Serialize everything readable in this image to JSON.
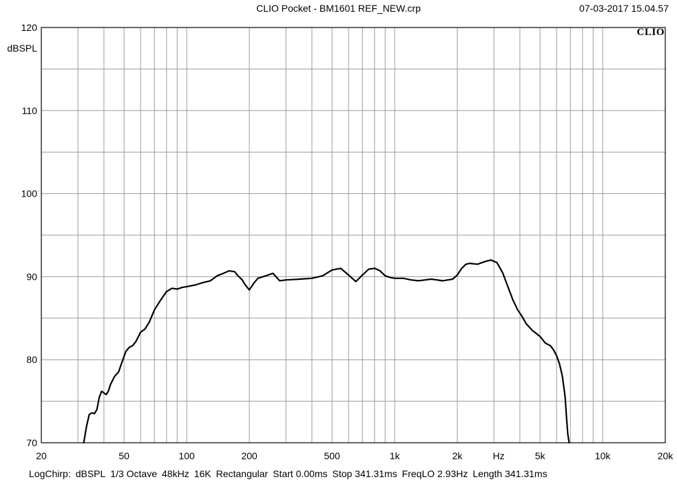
{
  "header": {
    "title": "CLIO Pocket - BM1601 REF_NEW.crp",
    "datetime": "07-03-2017 15.04.57",
    "logo": "CLIO"
  },
  "footer": {
    "items": [
      "LogChirp:",
      "dBSPL",
      "1/3 Octave",
      "48kHz",
      "16K",
      "Rectangular",
      "Start 0.00ms",
      "Stop 341.31ms",
      "FreqLO 2.93Hz",
      "Length 341.31ms"
    ]
  },
  "chart_data": {
    "type": "line",
    "ylabel": "dBSPL",
    "xunit": "Hz",
    "xscale": "log",
    "xlim": [
      20,
      20000
    ],
    "ylim": [
      70,
      120
    ],
    "grid": true,
    "x_tick_labels": [
      {
        "value": 20,
        "label": "20"
      },
      {
        "value": 50,
        "label": "50"
      },
      {
        "value": 100,
        "label": "100"
      },
      {
        "value": 200,
        "label": "200"
      },
      {
        "value": 500,
        "label": "500"
      },
      {
        "value": 1000,
        "label": "1k"
      },
      {
        "value": 2000,
        "label": "2k"
      },
      {
        "value": 5000,
        "label": "5k"
      },
      {
        "value": 10000,
        "label": "10k"
      },
      {
        "value": 20000,
        "label": "20k"
      }
    ],
    "y_tick_labels": [
      {
        "value": 70,
        "label": "70"
      },
      {
        "value": 80,
        "label": "80"
      },
      {
        "value": 90,
        "label": "90"
      },
      {
        "value": 100,
        "label": "100"
      },
      {
        "value": 110,
        "label": "110"
      },
      {
        "value": 120,
        "label": "120"
      }
    ],
    "series": [
      {
        "color": "#000000",
        "x": [
          32,
          33,
          34,
          35,
          36,
          37,
          38,
          39,
          40,
          41,
          42,
          43,
          45,
          47,
          49,
          51,
          53,
          55,
          57,
          60,
          63,
          66,
          70,
          75,
          80,
          85,
          90,
          95,
          100,
          105,
          110,
          120,
          130,
          140,
          150,
          160,
          170,
          175,
          185,
          190,
          200,
          210,
          220,
          240,
          260,
          280,
          300,
          350,
          400,
          450,
          500,
          550,
          600,
          650,
          700,
          750,
          800,
          850,
          900,
          950,
          1000,
          1100,
          1200,
          1300,
          1400,
          1500,
          1600,
          1700,
          1800,
          1900,
          2000,
          2100,
          2200,
          2300,
          2500,
          2700,
          2900,
          3100,
          3300,
          3500,
          3700,
          3900,
          4100,
          4300,
          4600,
          5000,
          5300,
          5600,
          5800,
          6000,
          6200,
          6400,
          6600,
          6700,
          6800,
          6900
        ],
        "y": [
          70,
          72,
          73.4,
          73.6,
          73.5,
          74,
          75.5,
          76.2,
          76,
          75.8,
          76.2,
          77,
          78,
          78.5,
          79.8,
          81,
          81.5,
          81.7,
          82.2,
          83.3,
          83.7,
          84.5,
          86,
          87.2,
          88.2,
          88.6,
          88.5,
          88.7,
          88.8,
          88.9,
          89,
          89.3,
          89.5,
          90.1,
          90.4,
          90.7,
          90.6,
          90.2,
          89.6,
          89.1,
          88.4,
          89.2,
          89.8,
          90.1,
          90.4,
          89.5,
          89.6,
          89.7,
          89.8,
          90.1,
          90.8,
          91,
          90.2,
          89.4,
          90.2,
          90.9,
          91,
          90.7,
          90.1,
          89.9,
          89.8,
          89.8,
          89.6,
          89.5,
          89.6,
          89.7,
          89.6,
          89.5,
          89.6,
          89.7,
          90.2,
          91,
          91.5,
          91.6,
          91.5,
          91.8,
          92,
          91.7,
          90.5,
          88.8,
          87.2,
          86,
          85.2,
          84.3,
          83.5,
          82.8,
          82,
          81.7,
          81.2,
          80.5,
          79.5,
          78,
          75.5,
          73,
          71,
          70
        ]
      }
    ]
  }
}
